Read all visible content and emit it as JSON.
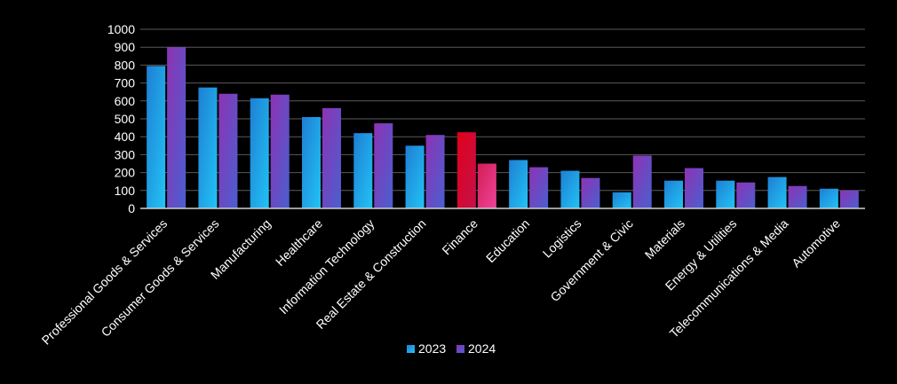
{
  "chart_data": {
    "type": "bar",
    "categories": [
      "Professional Goods & Services",
      "Consumer Goods & Services",
      "Manufacturing",
      "Healthcare",
      "Information Technology",
      "Real Estate & Construction",
      "Finance",
      "Education",
      "Logistics",
      "Government & Civic",
      "Materials",
      "Energy & Utilities",
      "Telecommunications & Media",
      "Automotive"
    ],
    "series": [
      {
        "name": "2023",
        "values": [
          795,
          675,
          615,
          510,
          420,
          350,
          425,
          270,
          210,
          90,
          155,
          155,
          175,
          110
        ]
      },
      {
        "name": "2024",
        "values": [
          900,
          640,
          635,
          560,
          475,
          410,
          250,
          230,
          170,
          295,
          225,
          145,
          125,
          100
        ]
      }
    ],
    "highlight": {
      "category": "Finance",
      "colors_2023": [
        "#e0001b",
        "#c4124a"
      ],
      "colors_2024": [
        "#d11e55",
        "#f0449a"
      ]
    },
    "colors": {
      "2023": [
        "#1e7fd4",
        "#22c3f5"
      ],
      "2024": [
        "#8d33b4",
        "#4a5fd0"
      ],
      "gridline": "#5a5a5a",
      "axis": "#d0d0d0",
      "background": "#000000"
    },
    "ylim": [
      0,
      1000
    ],
    "yticks": [
      0,
      100,
      200,
      300,
      400,
      500,
      600,
      700,
      800,
      900,
      1000
    ],
    "grid": true,
    "legend": "bottom-center",
    "title": "",
    "xlabel": "",
    "ylabel": ""
  }
}
